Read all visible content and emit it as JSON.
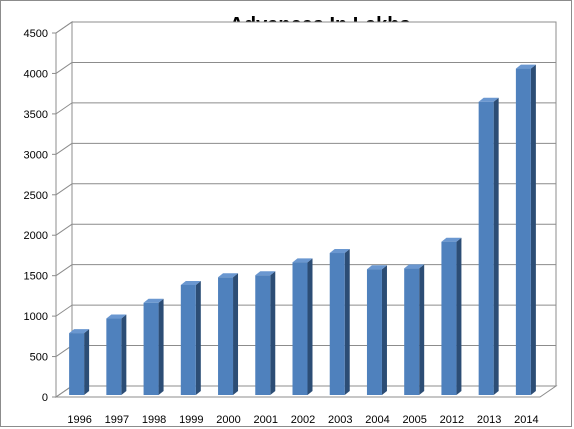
{
  "chart_data": {
    "type": "bar",
    "title": "Advances In Lakhs",
    "xlabel": "",
    "ylabel": "",
    "categories": [
      "1996",
      "1997",
      "1998",
      "1999",
      "2000",
      "2001",
      "2002",
      "2003",
      "2004",
      "2005",
      "2012",
      "2013",
      "2014"
    ],
    "values": [
      790,
      970,
      1165,
      1385,
      1480,
      1505,
      1665,
      1780,
      1580,
      1590,
      1920,
      3650,
      4060
    ],
    "ylim": [
      0,
      4500
    ],
    "yticks": [
      "0",
      "500",
      "1000",
      "1500",
      "2000",
      "2500",
      "3000",
      "3500",
      "4000",
      "4500"
    ],
    "grid": true,
    "legend": "none",
    "style": "3d-column",
    "colors": {
      "bar_front": "#4f81bd",
      "bar_side": "#2c4d75",
      "bar_top": "#6a97d0",
      "grid": "#8c8c8c",
      "wall": "#ffffff"
    }
  }
}
